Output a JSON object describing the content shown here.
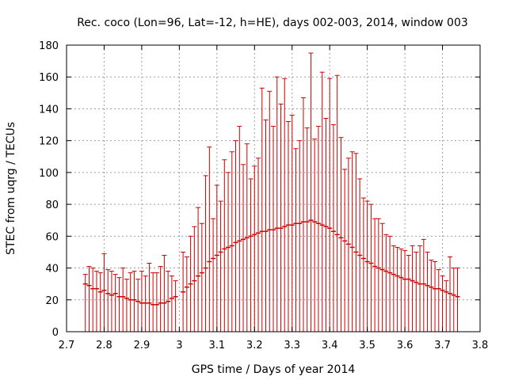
{
  "chart_data": {
    "type": "scatter",
    "title": "Rec. coco (Lon=96, Lat=-12, h=HE), days 002-003, 2014, window 003",
    "xlabel": "GPS time / Days of year 2014",
    "ylabel": "STEC from uqrg / TECUs",
    "xlim": [
      2.7,
      3.8
    ],
    "ylim": [
      0,
      180
    ],
    "x_ticks": [
      "2.7",
      "2.8",
      "2.9",
      "3",
      "3.1",
      "3.2",
      "3.3",
      "3.4",
      "3.5",
      "3.6",
      "3.7",
      "3.8"
    ],
    "y_ticks": [
      "0",
      "20",
      "40",
      "60",
      "80",
      "100",
      "120",
      "140",
      "160",
      "180"
    ],
    "grid": true,
    "error_bars": true,
    "color": "#cc0000",
    "series": [
      {
        "points": [
          {
            "x": 2.75,
            "y": 30,
            "err_hi": 36
          },
          {
            "x": 2.76,
            "y": 29,
            "err_hi": 41
          },
          {
            "x": 2.77,
            "y": 27,
            "err_hi": 40
          },
          {
            "x": 2.78,
            "y": 27,
            "err_hi": 38
          },
          {
            "x": 2.79,
            "y": 25,
            "err_hi": 37
          },
          {
            "x": 2.8,
            "y": 26,
            "err_hi": 49
          },
          {
            "x": 2.81,
            "y": 24,
            "err_hi": 39
          },
          {
            "x": 2.82,
            "y": 23,
            "err_hi": 38
          },
          {
            "x": 2.83,
            "y": 24,
            "err_hi": 36
          },
          {
            "x": 2.84,
            "y": 22,
            "err_hi": 34
          },
          {
            "x": 2.85,
            "y": 22,
            "err_hi": 40
          },
          {
            "x": 2.86,
            "y": 21,
            "err_hi": 33
          },
          {
            "x": 2.87,
            "y": 20,
            "err_hi": 37
          },
          {
            "x": 2.88,
            "y": 20,
            "err_hi": 38
          },
          {
            "x": 2.89,
            "y": 19,
            "err_hi": 33
          },
          {
            "x": 2.9,
            "y": 18,
            "err_hi": 38
          },
          {
            "x": 2.91,
            "y": 18,
            "err_hi": 35
          },
          {
            "x": 2.92,
            "y": 18,
            "err_hi": 43
          },
          {
            "x": 2.93,
            "y": 17,
            "err_hi": 37
          },
          {
            "x": 2.94,
            "y": 17,
            "err_hi": 37
          },
          {
            "x": 2.95,
            "y": 18,
            "err_hi": 41
          },
          {
            "x": 2.96,
            "y": 18,
            "err_hi": 48
          },
          {
            "x": 2.97,
            "y": 19,
            "err_hi": 38
          },
          {
            "x": 2.98,
            "y": 21,
            "err_hi": 35
          },
          {
            "x": 2.99,
            "y": 22,
            "err_hi": 32
          },
          {
            "x": 3.01,
            "y": 25,
            "err_hi": 50
          },
          {
            "x": 3.02,
            "y": 28,
            "err_hi": 47
          },
          {
            "x": 3.03,
            "y": 30,
            "err_hi": 60
          },
          {
            "x": 3.04,
            "y": 32,
            "err_hi": 66
          },
          {
            "x": 3.05,
            "y": 35,
            "err_hi": 78
          },
          {
            "x": 3.06,
            "y": 37,
            "err_hi": 68
          },
          {
            "x": 3.07,
            "y": 40,
            "err_hi": 98
          },
          {
            "x": 3.08,
            "y": 44,
            "err_hi": 116
          },
          {
            "x": 3.09,
            "y": 46,
            "err_hi": 71
          },
          {
            "x": 3.1,
            "y": 48,
            "err_hi": 92
          },
          {
            "x": 3.11,
            "y": 50,
            "err_hi": 82
          },
          {
            "x": 3.12,
            "y": 52,
            "err_hi": 108
          },
          {
            "x": 3.13,
            "y": 53,
            "err_hi": 100
          },
          {
            "x": 3.14,
            "y": 54,
            "err_hi": 113
          },
          {
            "x": 3.15,
            "y": 56,
            "err_hi": 120
          },
          {
            "x": 3.16,
            "y": 57,
            "err_hi": 129
          },
          {
            "x": 3.17,
            "y": 58,
            "err_hi": 105
          },
          {
            "x": 3.18,
            "y": 59,
            "err_hi": 118
          },
          {
            "x": 3.19,
            "y": 60,
            "err_hi": 96
          },
          {
            "x": 3.2,
            "y": 61,
            "err_hi": 104
          },
          {
            "x": 3.21,
            "y": 62,
            "err_hi": 109
          },
          {
            "x": 3.22,
            "y": 63,
            "err_hi": 153
          },
          {
            "x": 3.23,
            "y": 63,
            "err_hi": 133
          },
          {
            "x": 3.24,
            "y": 64,
            "err_hi": 151
          },
          {
            "x": 3.25,
            "y": 64,
            "err_hi": 129
          },
          {
            "x": 3.26,
            "y": 65,
            "err_hi": 160
          },
          {
            "x": 3.27,
            "y": 65,
            "err_hi": 143
          },
          {
            "x": 3.28,
            "y": 66,
            "err_hi": 159
          },
          {
            "x": 3.29,
            "y": 67,
            "err_hi": 132
          },
          {
            "x": 3.3,
            "y": 67,
            "err_hi": 136
          },
          {
            "x": 3.31,
            "y": 68,
            "err_hi": 115
          },
          {
            "x": 3.32,
            "y": 68,
            "err_hi": 120
          },
          {
            "x": 3.33,
            "y": 69,
            "err_hi": 147
          },
          {
            "x": 3.34,
            "y": 69,
            "err_hi": 128
          },
          {
            "x": 3.35,
            "y": 70,
            "err_hi": 175
          },
          {
            "x": 3.36,
            "y": 69,
            "err_hi": 121
          },
          {
            "x": 3.37,
            "y": 68,
            "err_hi": 129
          },
          {
            "x": 3.38,
            "y": 67,
            "err_hi": 163
          },
          {
            "x": 3.39,
            "y": 66,
            "err_hi": 134
          },
          {
            "x": 3.4,
            "y": 65,
            "err_hi": 159
          },
          {
            "x": 3.41,
            "y": 63,
            "err_hi": 130
          },
          {
            "x": 3.42,
            "y": 61,
            "err_hi": 161
          },
          {
            "x": 3.43,
            "y": 59,
            "err_hi": 122
          },
          {
            "x": 3.44,
            "y": 57,
            "err_hi": 102
          },
          {
            "x": 3.45,
            "y": 55,
            "err_hi": 109
          },
          {
            "x": 3.46,
            "y": 53,
            "err_hi": 113
          },
          {
            "x": 3.47,
            "y": 50,
            "err_hi": 112
          },
          {
            "x": 3.48,
            "y": 48,
            "err_hi": 96
          },
          {
            "x": 3.49,
            "y": 46,
            "err_hi": 84
          },
          {
            "x": 3.5,
            "y": 44,
            "err_hi": 82
          },
          {
            "x": 3.51,
            "y": 43,
            "err_hi": 80
          },
          {
            "x": 3.52,
            "y": 41,
            "err_hi": 71
          },
          {
            "x": 3.53,
            "y": 40,
            "err_hi": 71
          },
          {
            "x": 3.54,
            "y": 39,
            "err_hi": 68
          },
          {
            "x": 3.55,
            "y": 38,
            "err_hi": 61
          },
          {
            "x": 3.56,
            "y": 37,
            "err_hi": 60
          },
          {
            "x": 3.57,
            "y": 36,
            "err_hi": 54
          },
          {
            "x": 3.58,
            "y": 35,
            "err_hi": 53
          },
          {
            "x": 3.59,
            "y": 34,
            "err_hi": 52
          },
          {
            "x": 3.6,
            "y": 33,
            "err_hi": 51
          },
          {
            "x": 3.61,
            "y": 33,
            "err_hi": 48
          },
          {
            "x": 3.62,
            "y": 32,
            "err_hi": 54
          },
          {
            "x": 3.63,
            "y": 31,
            "err_hi": 50
          },
          {
            "x": 3.64,
            "y": 30,
            "err_hi": 54
          },
          {
            "x": 3.65,
            "y": 30,
            "err_hi": 58
          },
          {
            "x": 3.66,
            "y": 29,
            "err_hi": 50
          },
          {
            "x": 3.67,
            "y": 28,
            "err_hi": 45
          },
          {
            "x": 3.68,
            "y": 27,
            "err_hi": 44
          },
          {
            "x": 3.69,
            "y": 27,
            "err_hi": 39
          },
          {
            "x": 3.7,
            "y": 26,
            "err_hi": 35
          },
          {
            "x": 3.71,
            "y": 25,
            "err_hi": 32
          },
          {
            "x": 3.72,
            "y": 24,
            "err_hi": 47
          },
          {
            "x": 3.73,
            "y": 23,
            "err_hi": 40
          },
          {
            "x": 3.74,
            "y": 22,
            "err_hi": 40
          }
        ]
      }
    ]
  }
}
